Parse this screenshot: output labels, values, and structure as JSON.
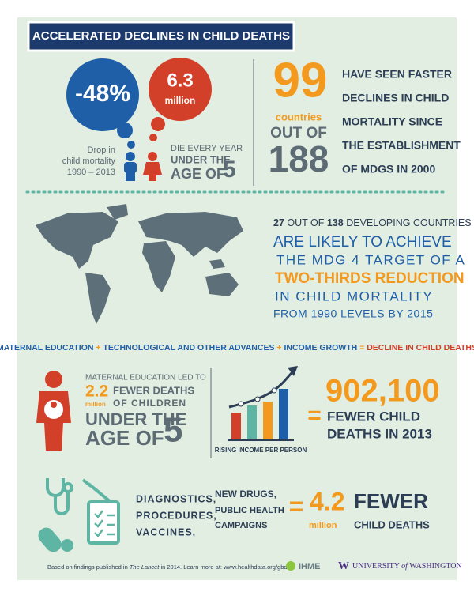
{
  "header": {
    "title": "ACCELERATED DECLINES IN CHILD DEATHS"
  },
  "stats": {
    "drop": {
      "value": "-48%",
      "caption": [
        "Drop in",
        "child mortality",
        "1990 – 2013"
      ]
    },
    "deaths": {
      "value": "6.3",
      "unit": "million",
      "caption": [
        "DIE EVERY YEAR",
        "UNDER THE",
        "AGE OF"
      ],
      "age": "5"
    },
    "countries": {
      "count": "99",
      "label": "countries",
      "out_of": "OUT OF",
      "total": "188",
      "lines": [
        "HAVE SEEN FASTER",
        "DECLINES IN CHILD",
        "MORTALITY SINCE",
        "THE ESTABLISHMENT",
        "OF MDGS IN 2000"
      ]
    }
  },
  "mdg": {
    "intro": [
      "27",
      "OUT OF",
      "138",
      "DEVELOPING COUNTRIES"
    ],
    "lines": [
      "ARE LIKELY TO ACHIEVE",
      "THE MDG 4 TARGET OF A",
      "TWO-THIRDS REDUCTION",
      "IN CHILD MORTALITY",
      "FROM 1990 LEVELS BY 2015"
    ]
  },
  "equation": [
    "MATERNAL EDUCATION",
    "+",
    "TECHNOLOGICAL AND OTHER ADVANCES",
    "+",
    "INCOME GROWTH",
    "=",
    "DECLINE IN CHILD DEATHS"
  ],
  "education": {
    "intro": "MATERNAL EDUCATION LED TO",
    "value": "2.2",
    "unit": "million",
    "lines": [
      "FEWER DEATHS",
      "OF CHILDREN",
      "UNDER THE",
      "AGE OF"
    ],
    "age": "5"
  },
  "income": {
    "caption": "RISING INCOME PER PERSON",
    "equals": "=",
    "value": "902,100",
    "lines": [
      "FEWER CHILD",
      "DEATHS IN 2013"
    ]
  },
  "advances": {
    "col1": [
      "DIAGNOSTICS,",
      "PROCEDURES,",
      "VACCINES,"
    ],
    "col2": [
      "NEW DRUGS,",
      "PUBLIC HEALTH",
      "CAMPAIGNS"
    ],
    "equals": "=",
    "value": "4.2",
    "unit": "million",
    "lines": [
      "FEWER",
      "CHILD DEATHS"
    ]
  },
  "footer": {
    "note": [
      "Based on findings published in ",
      "The Lancet",
      " in 2014. Learn more at: www.healthdata.org/gbd"
    ],
    "ihme": "IHME",
    "uw": [
      "W",
      "UNIVERSITY",
      "of",
      "WASHINGTON"
    ]
  }
}
